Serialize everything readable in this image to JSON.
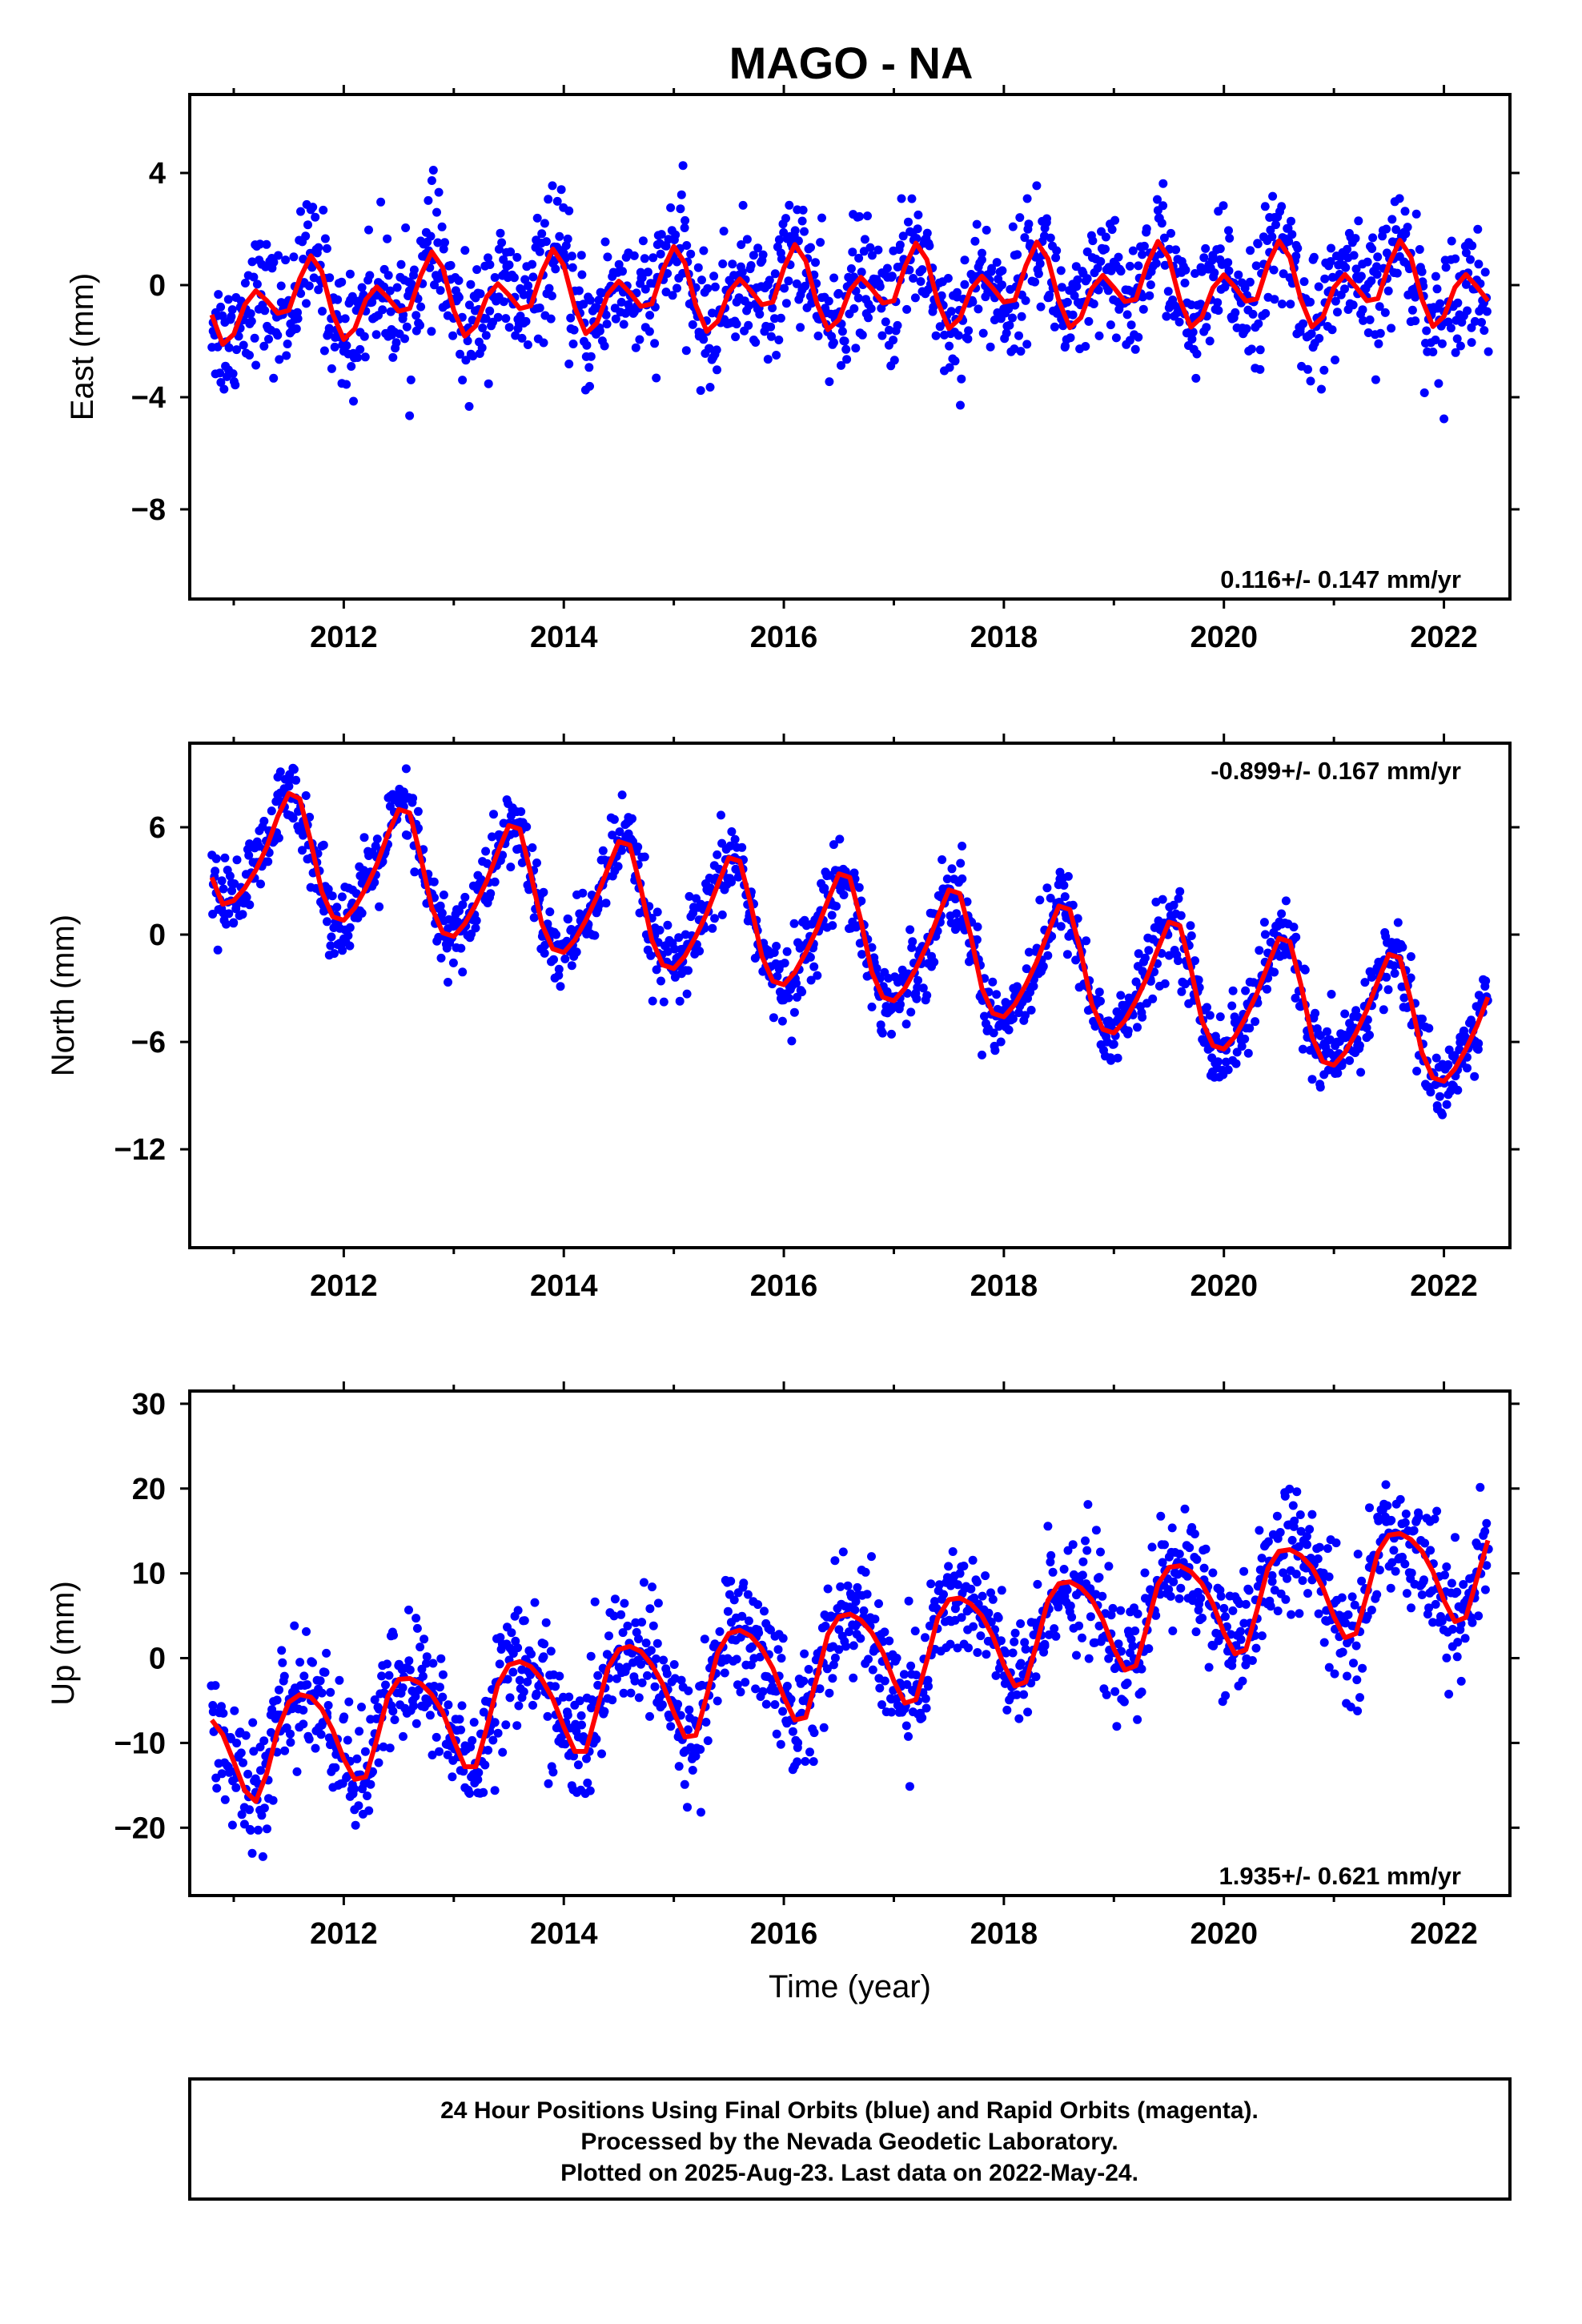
{
  "figure": {
    "title": "MAGO - NA",
    "footer_lines": [
      "24 Hour Positions Using Final Orbits (blue) and Rapid Orbits (magenta).",
      "Processed by the Nevada Geodetic Laboratory.",
      "Plotted on 2025-Aug-23. Last data on 2022-May-24."
    ]
  },
  "colors": {
    "final_points": "#0000ff",
    "model_line": "#ff0000",
    "frame": "#000000"
  },
  "chart_data": [
    {
      "type": "scatter",
      "title": "MAGO - NA",
      "ylabel": "East (mm)",
      "xlabel": "",
      "xlim": [
        2010.6,
        2022.6
      ],
      "ylim": [
        -11.2,
        6.8
      ],
      "xticks": [
        2012,
        2014,
        2016,
        2018,
        2020,
        2022
      ],
      "yticks": [
        4,
        0,
        -4,
        -8
      ],
      "ytick_labels": [
        "4",
        "0",
        "−4",
        "−8"
      ],
      "rate_label": "0.116+/- 0.147 mm/yr",
      "rate_position": "bottom-right",
      "grid": false,
      "series": [
        {
          "style": "line",
          "x": [
            2010.8,
            2010.9,
            2011.0,
            2011.1,
            2011.2,
            2011.3,
            2011.4,
            2011.5,
            2011.6,
            2011.7,
            2011.8,
            2011.9,
            2012.0,
            2012.1,
            2012.2,
            2012.3,
            2012.4,
            2012.5,
            2012.6,
            2012.7,
            2012.8,
            2012.9,
            2013.0,
            2013.1,
            2013.2,
            2013.3,
            2013.4,
            2013.5,
            2013.6,
            2013.7,
            2013.8,
            2013.9,
            2014.0,
            2014.1,
            2014.2,
            2014.3,
            2014.4,
            2014.5,
            2014.6,
            2014.7,
            2014.8,
            2014.9,
            2015.0,
            2015.1,
            2015.2,
            2015.3,
            2015.4,
            2015.5,
            2015.6,
            2015.7,
            2015.8,
            2015.9,
            2016.0,
            2016.1,
            2016.2,
            2016.3,
            2016.4,
            2016.5,
            2016.6,
            2016.7,
            2016.8,
            2016.9,
            2017.0,
            2017.1,
            2017.2,
            2017.3,
            2017.4,
            2017.5,
            2017.6,
            2017.7,
            2017.8,
            2017.9,
            2018.0,
            2018.1,
            2018.2,
            2018.3,
            2018.4,
            2018.5,
            2018.6,
            2018.7,
            2018.8,
            2018.9,
            2019.0,
            2019.1,
            2019.2,
            2019.3,
            2019.4,
            2019.5,
            2019.6,
            2019.7,
            2019.8,
            2019.9,
            2020.0,
            2020.1,
            2020.2,
            2020.3,
            2020.4,
            2020.5,
            2020.6,
            2020.7,
            2020.8,
            2020.9,
            2021.0,
            2021.1,
            2021.2,
            2021.3,
            2021.4,
            2021.5,
            2021.6,
            2021.7,
            2021.8,
            2021.9,
            2022.0,
            2022.1,
            2022.2,
            2022.3,
            2022.4
          ],
          "y": [
            -1.06,
            -2.11,
            -1.75,
            -0.7,
            -0.2,
            -0.55,
            -1.01,
            -0.9,
            0.23,
            1.05,
            0.48,
            -1.03,
            -1.94,
            -1.56,
            -0.52,
            -0.06,
            -0.45,
            -0.93,
            -0.83,
            0.35,
            1.19,
            0.62,
            -0.9,
            -1.82,
            -1.45,
            -0.41,
            0.05,
            -0.35,
            -0.84,
            -0.74,
            0.46,
            1.29,
            0.71,
            -0.8,
            -1.73,
            -1.36,
            -0.32,
            0.14,
            -0.27,
            -0.76,
            -0.67,
            0.54,
            1.38,
            0.79,
            -0.72,
            -1.65,
            -1.29,
            -0.25,
            0.22,
            -0.2,
            -0.7,
            -0.61,
            0.61,
            1.45,
            0.86,
            -0.65,
            -1.59,
            -1.23,
            -0.19,
            0.28,
            -0.14,
            -0.64,
            -0.56,
            0.66,
            1.5,
            0.91,
            -0.6,
            -1.55,
            -1.19,
            -0.15,
            0.32,
            -0.11,
            -0.61,
            -0.53,
            0.69,
            1.54,
            0.94,
            -0.56,
            -1.52,
            -1.16,
            -0.12,
            0.35,
            -0.09,
            -0.59,
            -0.51,
            0.72,
            1.56,
            0.97,
            -0.54,
            -1.5,
            -1.14,
            -0.1,
            0.37,
            -0.07,
            -0.57,
            -0.49,
            0.74,
            1.58,
            0.99,
            -0.52,
            -1.49,
            -1.13,
            -0.09,
            0.38,
            -0.06,
            -0.56,
            -0.48,
            0.74,
            1.6,
            1.0,
            -0.51,
            -1.48,
            -1.12,
            -0.08,
            0.38,
            -0.06,
            -0.56
          ]
        }
      ]
    },
    {
      "type": "scatter",
      "ylabel": "North (mm)",
      "xlabel": "",
      "xlim": [
        2010.6,
        2022.6
      ],
      "ylim": [
        -17.5,
        10.7
      ],
      "xticks": [
        2012,
        2014,
        2016,
        2018,
        2020,
        2022
      ],
      "yticks": [
        6,
        0,
        -6,
        -12
      ],
      "ytick_labels": [
        "6",
        "0",
        "−6",
        "−12"
      ],
      "rate_label": "-0.899+/- 0.167 mm/yr",
      "rate_position": "top-right",
      "grid": false,
      "series": [
        {
          "style": "line",
          "x": [
            2010.8,
            2010.9,
            2011.0,
            2011.1,
            2011.2,
            2011.3,
            2011.4,
            2011.5,
            2011.6,
            2011.7,
            2011.8,
            2011.9,
            2012.0,
            2012.1,
            2012.2,
            2012.3,
            2012.4,
            2012.5,
            2012.6,
            2012.7,
            2012.8,
            2012.9,
            2013.0,
            2013.1,
            2013.2,
            2013.3,
            2013.4,
            2013.5,
            2013.6,
            2013.7,
            2013.8,
            2013.9,
            2014.0,
            2014.1,
            2014.2,
            2014.3,
            2014.4,
            2014.5,
            2014.6,
            2014.7,
            2014.8,
            2014.9,
            2015.0,
            2015.1,
            2015.2,
            2015.3,
            2015.4,
            2015.5,
            2015.6,
            2015.7,
            2015.8,
            2015.9,
            2016.0,
            2016.1,
            2016.2,
            2016.3,
            2016.4,
            2016.5,
            2016.6,
            2016.7,
            2016.8,
            2016.9,
            2017.0,
            2017.1,
            2017.2,
            2017.3,
            2017.4,
            2017.5,
            2017.6,
            2017.7,
            2017.8,
            2017.9,
            2018.0,
            2018.1,
            2018.2,
            2018.3,
            2018.4,
            2018.5,
            2018.6,
            2018.7,
            2018.8,
            2018.9,
            2019.0,
            2019.1,
            2019.2,
            2019.3,
            2019.4,
            2019.5,
            2019.6,
            2019.7,
            2019.8,
            2019.9,
            2020.0,
            2020.1,
            2020.2,
            2020.3,
            2020.4,
            2020.5,
            2020.6,
            2020.7,
            2020.8,
            2020.9,
            2021.0,
            2021.1,
            2021.2,
            2021.3,
            2021.4,
            2021.5,
            2021.6,
            2021.7,
            2021.8,
            2021.9,
            2022.0,
            2022.1,
            2022.2,
            2022.3,
            2022.4
          ],
          "y": [
            3.2,
            1.7,
            1.9,
            2.6,
            3.6,
            4.9,
            6.6,
            7.9,
            7.6,
            5.2,
            2.4,
            1.0,
            0.8,
            1.5,
            2.6,
            3.9,
            5.6,
            7.0,
            6.8,
            4.3,
            1.5,
            0.1,
            -0.1,
            0.6,
            1.7,
            3.0,
            4.6,
            6.1,
            5.9,
            3.4,
            0.6,
            -0.8,
            -1.0,
            -0.3,
            0.8,
            2.1,
            3.7,
            5.2,
            5.0,
            2.6,
            -0.3,
            -1.7,
            -1.9,
            -1.2,
            -0.1,
            1.2,
            2.8,
            4.3,
            4.1,
            1.7,
            -1.2,
            -2.6,
            -2.8,
            -2.1,
            -1.0,
            0.3,
            1.9,
            3.4,
            3.2,
            0.8,
            -2.1,
            -3.5,
            -3.7,
            -3.0,
            -1.9,
            -0.6,
            1.0,
            2.5,
            2.3,
            -0.1,
            -3.0,
            -4.4,
            -4.6,
            -3.9,
            -2.8,
            -1.5,
            0.1,
            1.6,
            1.4,
            -1.0,
            -3.9,
            -5.3,
            -5.5,
            -4.8,
            -3.7,
            -2.4,
            -0.8,
            0.7,
            0.5,
            -1.9,
            -4.8,
            -6.2,
            -6.4,
            -5.7,
            -4.6,
            -3.3,
            -1.7,
            -0.2,
            -0.4,
            -2.8,
            -5.7,
            -7.1,
            -7.3,
            -6.6,
            -5.5,
            -4.2,
            -2.6,
            -1.1,
            -1.3,
            -3.7,
            -6.6,
            -8.0,
            -8.2,
            -7.5,
            -6.4,
            -5.1,
            -3.5
          ]
        }
      ]
    },
    {
      "type": "scatter",
      "ylabel": "Up (mm)",
      "xlabel": "Time (year)",
      "xlim": [
        2010.6,
        2022.6
      ],
      "ylim": [
        -28,
        31.5
      ],
      "xticks": [
        2012,
        2014,
        2016,
        2018,
        2020,
        2022
      ],
      "yticks": [
        30,
        20,
        10,
        0,
        -10,
        -20
      ],
      "ytick_labels": [
        "30",
        "20",
        "10",
        "0",
        "−10",
        "−20"
      ],
      "rate_label": "1.935+/- 0.621 mm/yr",
      "rate_position": "bottom-right",
      "grid": false,
      "series": [
        {
          "style": "line",
          "x": [
            2010.8,
            2010.9,
            2011.0,
            2011.1,
            2011.2,
            2011.3,
            2011.4,
            2011.5,
            2011.6,
            2011.7,
            2011.8,
            2011.9,
            2012.0,
            2012.1,
            2012.2,
            2012.3,
            2012.4,
            2012.5,
            2012.6,
            2012.7,
            2012.8,
            2012.9,
            2013.0,
            2013.1,
            2013.2,
            2013.3,
            2013.4,
            2013.5,
            2013.6,
            2013.7,
            2013.8,
            2013.9,
            2014.0,
            2014.1,
            2014.2,
            2014.3,
            2014.4,
            2014.5,
            2014.6,
            2014.7,
            2014.8,
            2014.9,
            2015.0,
            2015.1,
            2015.2,
            2015.3,
            2015.4,
            2015.5,
            2015.6,
            2015.7,
            2015.8,
            2015.9,
            2016.0,
            2016.1,
            2016.2,
            2016.3,
            2016.4,
            2016.5,
            2016.6,
            2016.7,
            2016.8,
            2016.9,
            2017.0,
            2017.1,
            2017.2,
            2017.3,
            2017.4,
            2017.5,
            2017.6,
            2017.7,
            2017.8,
            2017.9,
            2018.0,
            2018.1,
            2018.2,
            2018.3,
            2018.4,
            2018.5,
            2018.6,
            2018.7,
            2018.8,
            2018.9,
            2019.0,
            2019.1,
            2019.2,
            2019.3,
            2019.4,
            2019.5,
            2019.6,
            2019.7,
            2019.8,
            2019.9,
            2020.0,
            2020.1,
            2020.2,
            2020.3,
            2020.4,
            2020.5,
            2020.6,
            2020.7,
            2020.8,
            2020.9,
            2021.0,
            2021.1,
            2021.2,
            2021.3,
            2021.4,
            2021.5,
            2021.6,
            2021.7,
            2021.8,
            2021.9,
            2022.0,
            2022.1,
            2022.2,
            2022.3,
            2022.4
          ],
          "y": [
            -7.3,
            -9.0,
            -12.2,
            -15.6,
            -16.9,
            -13.6,
            -8.5,
            -5.2,
            -4.3,
            -4.6,
            -6.0,
            -8.5,
            -11.9,
            -14.3,
            -14.0,
            -9.6,
            -4.5,
            -2.5,
            -2.4,
            -3.0,
            -4.3,
            -6.4,
            -9.7,
            -12.8,
            -12.8,
            -8.2,
            -3.1,
            -0.8,
            -0.4,
            -1.0,
            -2.5,
            -4.8,
            -8.1,
            -11.0,
            -11.0,
            -6.2,
            -1.2,
            1.0,
            1.4,
            0.8,
            -0.8,
            -3.1,
            -6.4,
            -9.3,
            -9.1,
            -4.4,
            0.7,
            2.9,
            3.3,
            2.6,
            1.1,
            -1.2,
            -4.6,
            -7.3,
            -7.0,
            -2.3,
            2.8,
            4.9,
            5.2,
            4.5,
            3.0,
            0.7,
            -2.7,
            -5.3,
            -4.9,
            -0.3,
            4.8,
            6.9,
            7.1,
            6.4,
            5.0,
            2.6,
            -0.8,
            -3.3,
            -2.8,
            1.8,
            6.8,
            8.8,
            9.0,
            8.3,
            6.9,
            4.5,
            1.1,
            -1.4,
            -0.9,
            3.7,
            8.7,
            10.7,
            10.9,
            10.2,
            8.8,
            6.4,
            3.0,
            0.5,
            1.0,
            5.6,
            10.6,
            12.6,
            12.8,
            12.1,
            10.7,
            8.3,
            4.9,
            2.4,
            2.9,
            7.5,
            12.5,
            14.5,
            14.7,
            14.0,
            12.6,
            10.2,
            6.8,
            4.3,
            4.8,
            9.4,
            13.9
          ]
        }
      ]
    }
  ]
}
